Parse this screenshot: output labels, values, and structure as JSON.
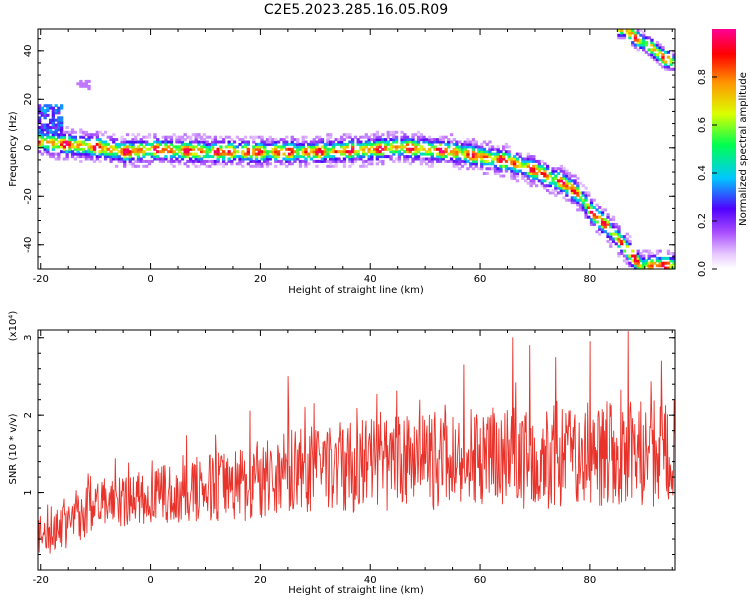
{
  "title": "C2E5.2023.285.16.05.R09",
  "chart_data": [
    {
      "type": "heatmap",
      "xlabel": "Height of straight line (km)",
      "ylabel": "Frequency (Hz)",
      "xlim": [
        -20.5,
        95.5
      ],
      "ylim": [
        -50,
        49
      ],
      "xticks": [
        -20,
        0,
        20,
        40,
        60,
        80
      ],
      "yticks": [
        -40,
        -20,
        0,
        20,
        40
      ],
      "colorbar": {
        "label": "Normalized spectral amplitude",
        "range": [
          0,
          1
        ],
        "ticks": [
          0.0,
          0.2,
          0.4,
          0.6,
          0.8
        ]
      },
      "ridge": [
        {
          "x": -20,
          "y": 2
        },
        {
          "x": -15,
          "y": 1
        },
        {
          "x": -10,
          "y": 0
        },
        {
          "x": -5,
          "y": -2
        },
        {
          "x": 0,
          "y": -1
        },
        {
          "x": 10,
          "y": -2
        },
        {
          "x": 20,
          "y": -2
        },
        {
          "x": 30,
          "y": -2
        },
        {
          "x": 40,
          "y": -1
        },
        {
          "x": 45,
          "y": 0
        },
        {
          "x": 50,
          "y": -1
        },
        {
          "x": 55,
          "y": -2
        },
        {
          "x": 60,
          "y": -4
        },
        {
          "x": 65,
          "y": -6
        },
        {
          "x": 70,
          "y": -10
        },
        {
          "x": 75,
          "y": -15
        },
        {
          "x": 78,
          "y": -20
        },
        {
          "x": 80,
          "y": -27
        },
        {
          "x": 83,
          "y": -33
        },
        {
          "x": 86,
          "y": -41
        },
        {
          "x": 89,
          "y": -49
        }
      ],
      "aliased_ridge": [
        {
          "x": 86,
          "y": 49
        },
        {
          "x": 88,
          "y": 45
        },
        {
          "x": 91,
          "y": 41
        },
        {
          "x": 93,
          "y": 37
        },
        {
          "x": 95,
          "y": 35
        }
      ],
      "grid": false
    },
    {
      "type": "line",
      "xlabel": "Height of straight line (km)",
      "ylabel": "SNR (10 * v/v)",
      "y_multiplier": "(x10⁴)",
      "xlim": [
        -20.5,
        95.5
      ],
      "ylim": [
        0,
        3.1
      ],
      "xticks": [
        -20,
        0,
        20,
        40,
        60,
        80
      ],
      "yticks": [
        1,
        2,
        3
      ],
      "trend": [
        {
          "x": -20,
          "y": 0.45
        },
        {
          "x": -10,
          "y": 0.85
        },
        {
          "x": 0,
          "y": 0.95
        },
        {
          "x": 10,
          "y": 1.05
        },
        {
          "x": 20,
          "y": 1.2
        },
        {
          "x": 30,
          "y": 1.3
        },
        {
          "x": 40,
          "y": 1.35
        },
        {
          "x": 50,
          "y": 1.4
        },
        {
          "x": 60,
          "y": 1.45
        },
        {
          "x": 70,
          "y": 1.45
        },
        {
          "x": 80,
          "y": 1.5
        },
        {
          "x": 95,
          "y": 1.5
        }
      ],
      "amplitude": [
        {
          "x": -20,
          "y": 0.35
        },
        {
          "x": 0,
          "y": 0.35
        },
        {
          "x": 20,
          "y": 0.55
        },
        {
          "x": 60,
          "y": 0.65
        },
        {
          "x": 95,
          "y": 0.7
        }
      ],
      "peaks": [
        {
          "x": 25,
          "y": 2.5
        },
        {
          "x": 57,
          "y": 2.65
        },
        {
          "x": 66,
          "y": 3.0
        },
        {
          "x": 69,
          "y": 2.9
        },
        {
          "x": 80,
          "y": 2.95
        },
        {
          "x": 87,
          "y": 3.1
        },
        {
          "x": 93,
          "y": 2.7
        }
      ],
      "line_color": "#e8322a",
      "grid": false
    }
  ]
}
